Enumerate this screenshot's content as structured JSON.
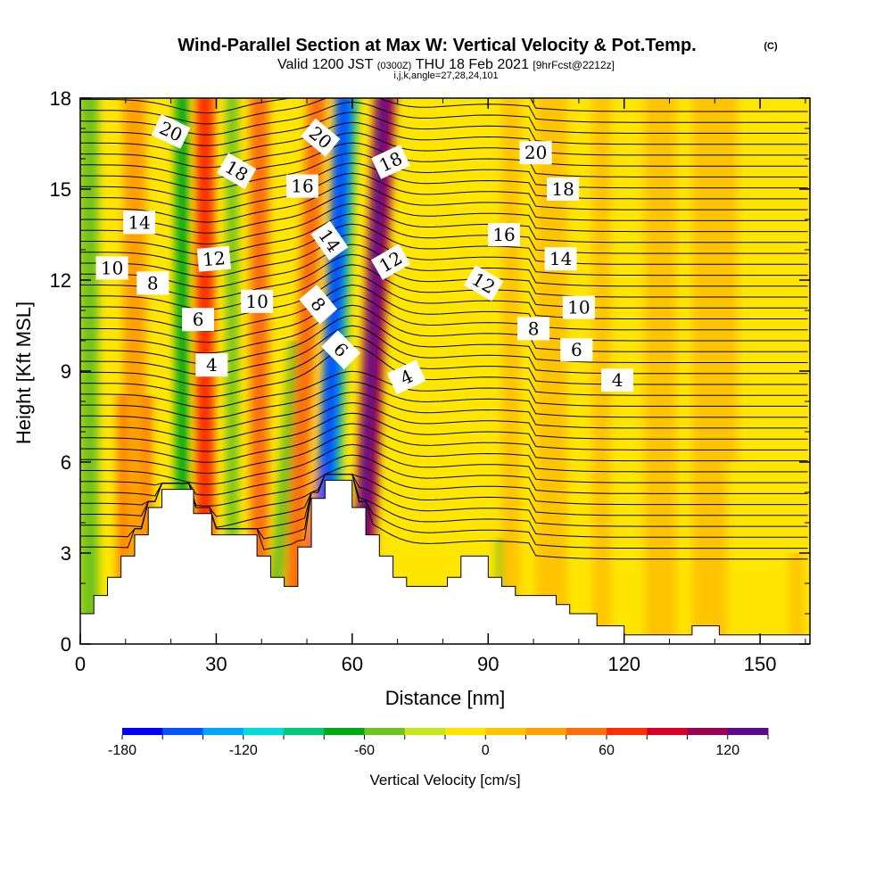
{
  "title": {
    "main": "Wind-Parallel Section at Max W: Vertical Velocity & Pot.Temp.",
    "mark": "(C)",
    "valid_prefix": "Valid 1200 JST",
    "valid_utc": "(0300Z)",
    "valid_date": "THU 18 Feb 2021",
    "forecast": "[9hrFcst@2212z]",
    "indices": "i,j,k,angle=27,28,24,101"
  },
  "chart_data": {
    "type": "heatmap",
    "xlabel": "Distance [nm]",
    "ylabel": "Height [Kft MSL]",
    "xlim": [
      0,
      161
    ],
    "ylim": [
      0,
      18
    ],
    "x_ticks": [
      "0",
      "30",
      "60",
      "90",
      "120",
      "150"
    ],
    "y_ticks": [
      "0",
      "3",
      "6",
      "9",
      "12",
      "15",
      "18"
    ],
    "colorbar": {
      "label": "Vertical Velocity [cm/s]",
      "min": -180,
      "max": 140,
      "step": 20,
      "tick_labels": [
        "-180",
        "-120",
        "-60",
        "0",
        "60",
        "120"
      ],
      "colors": [
        "#0000ff",
        "#0055ff",
        "#00a5ff",
        "#00dcdc",
        "#00c878",
        "#00aa14",
        "#6ec31e",
        "#c8e61e",
        "#ffe600",
        "#ffc400",
        "#ffa000",
        "#ff6e0a",
        "#ff2d00",
        "#dc0028",
        "#9b0055",
        "#5a0a8c"
      ]
    },
    "velocity_bands": [
      {
        "x": 2,
        "w": 4,
        "ytop": 18,
        "v": -50
      },
      {
        "x": 12,
        "w": 7,
        "ytop": 8.2,
        "v": 60
      },
      {
        "x": 12,
        "w": 5,
        "ytop": 18,
        "v": 28
      },
      {
        "x": 22.5,
        "w": 3,
        "ytop": 18,
        "v": -75
      },
      {
        "x": 27.5,
        "w": 4,
        "ytop": 18,
        "v": 70
      },
      {
        "x": 33.5,
        "w": 2.5,
        "ytop": 18,
        "v": -50
      },
      {
        "x": 39.5,
        "w": 4,
        "ytop": 18,
        "v": 45
      },
      {
        "x": 45,
        "w": 3,
        "ytop": 10,
        "v": -60
      },
      {
        "x": 49.5,
        "w": 4,
        "ytop": 18,
        "v": 55
      },
      {
        "x": 52,
        "w": 3,
        "ytop": 7,
        "v": 75
      },
      {
        "x": 56.5,
        "w": 4,
        "ytop": 18,
        "v": -90
      },
      {
        "x": 55.5,
        "w": 4,
        "ytop": 18,
        "v": -150
      },
      {
        "x": 64.5,
        "w": 4.5,
        "ytop": 18,
        "v": 100
      },
      {
        "x": 64,
        "w": 2,
        "ytop": 18,
        "v": 135
      },
      {
        "x": 70,
        "w": 3,
        "ytop": 5,
        "v": -20
      },
      {
        "x": 79,
        "w": 3,
        "ytop": 18,
        "v": -20
      },
      {
        "x": 90,
        "w": 3,
        "ytop": 18,
        "v": -20
      },
      {
        "x": 93,
        "w": 2.5,
        "ytop": 3.5,
        "v": -45
      },
      {
        "x": 95,
        "w": 4,
        "ytop": 18,
        "v": 15
      },
      {
        "x": 104,
        "w": 7,
        "ytop": 18,
        "v": 12
      },
      {
        "x": 115,
        "w": 4,
        "ytop": 18,
        "v": 8
      },
      {
        "x": 128,
        "w": 7,
        "ytop": 18,
        "v": 10
      },
      {
        "x": 140,
        "w": 10,
        "ytop": 18,
        "v": 8
      },
      {
        "x": 144,
        "w": 2.5,
        "ytop": 6,
        "v": -15
      },
      {
        "x": 158,
        "w": 3,
        "ytop": 3,
        "v": 15
      }
    ],
    "terrain": [
      [
        0,
        1.0
      ],
      [
        3,
        1.0
      ],
      [
        3,
        1.6
      ],
      [
        6,
        1.6
      ],
      [
        6,
        2.2
      ],
      [
        9,
        2.2
      ],
      [
        9,
        2.9
      ],
      [
        12,
        2.9
      ],
      [
        12,
        3.6
      ],
      [
        15,
        3.6
      ],
      [
        15,
        4.5
      ],
      [
        18,
        4.5
      ],
      [
        18,
        5.1
      ],
      [
        25,
        5.1
      ],
      [
        25,
        4.3
      ],
      [
        29,
        4.3
      ],
      [
        29,
        3.6
      ],
      [
        39,
        3.6
      ],
      [
        39,
        2.9
      ],
      [
        42,
        2.9
      ],
      [
        42,
        2.2
      ],
      [
        45,
        2.2
      ],
      [
        45,
        1.9
      ],
      [
        48,
        1.9
      ],
      [
        48,
        3.2
      ],
      [
        51,
        3.2
      ],
      [
        51,
        4.8
      ],
      [
        54,
        4.8
      ],
      [
        54,
        5.4
      ],
      [
        60,
        5.4
      ],
      [
        60,
        4.5
      ],
      [
        63,
        4.5
      ],
      [
        63,
        3.6
      ],
      [
        66,
        3.6
      ],
      [
        66,
        2.9
      ],
      [
        69,
        2.9
      ],
      [
        69,
        2.2
      ],
      [
        72,
        2.2
      ],
      [
        72,
        1.9
      ],
      [
        81,
        1.9
      ],
      [
        81,
        2.2
      ],
      [
        84,
        2.2
      ],
      [
        84,
        2.9
      ],
      [
        90,
        2.9
      ],
      [
        90,
        2.2
      ],
      [
        93,
        2.2
      ],
      [
        93,
        1.9
      ],
      [
        96,
        1.9
      ],
      [
        96,
        1.6
      ],
      [
        105,
        1.6
      ],
      [
        105,
        1.3
      ],
      [
        108,
        1.3
      ],
      [
        108,
        1.0
      ],
      [
        114,
        1.0
      ],
      [
        114,
        0.6
      ],
      [
        120,
        0.6
      ],
      [
        120,
        0.3
      ],
      [
        135,
        0.3
      ],
      [
        135,
        0.6
      ],
      [
        141,
        0.6
      ],
      [
        141,
        0.3
      ],
      [
        161,
        0.3
      ],
      [
        161,
        0
      ],
      [
        0,
        0
      ]
    ],
    "theta_contour_labels": [
      {
        "text": "20",
        "x": 20,
        "y": 16.9,
        "angle": 25
      },
      {
        "text": "18",
        "x": 34.5,
        "y": 15.6,
        "angle": 30
      },
      {
        "text": "14",
        "x": 13,
        "y": 13.9,
        "angle": 0
      },
      {
        "text": "12",
        "x": 29.5,
        "y": 12.7,
        "angle": -5
      },
      {
        "text": "10",
        "x": 7,
        "y": 12.4,
        "angle": 0
      },
      {
        "text": "8",
        "x": 16,
        "y": 11.9,
        "angle": 0
      },
      {
        "text": "6",
        "x": 26,
        "y": 10.7,
        "angle": 0
      },
      {
        "text": "4",
        "x": 29,
        "y": 9.2,
        "angle": 0
      },
      {
        "text": "10",
        "x": 39,
        "y": 11.3,
        "angle": 0
      },
      {
        "text": "16",
        "x": 49,
        "y": 15.1,
        "angle": 0
      },
      {
        "text": "20",
        "x": 53,
        "y": 16.7,
        "angle": 40
      },
      {
        "text": "14",
        "x": 55,
        "y": 13.3,
        "angle": 55
      },
      {
        "text": "8",
        "x": 52.5,
        "y": 11.2,
        "angle": 50
      },
      {
        "text": "6",
        "x": 57.5,
        "y": 9.7,
        "angle": 45
      },
      {
        "text": "18",
        "x": 68.5,
        "y": 15.9,
        "angle": -25
      },
      {
        "text": "12",
        "x": 68.5,
        "y": 12.6,
        "angle": -30
      },
      {
        "text": "4",
        "x": 72,
        "y": 8.8,
        "angle": -25
      },
      {
        "text": "20",
        "x": 100.5,
        "y": 16.2,
        "angle": 0
      },
      {
        "text": "18",
        "x": 106.5,
        "y": 15.0,
        "angle": 0
      },
      {
        "text": "16",
        "x": 93.5,
        "y": 13.5,
        "angle": 0
      },
      {
        "text": "12",
        "x": 89,
        "y": 11.9,
        "angle": 30
      },
      {
        "text": "14",
        "x": 106,
        "y": 12.7,
        "angle": 0
      },
      {
        "text": "10",
        "x": 110,
        "y": 11.1,
        "angle": 0
      },
      {
        "text": "8",
        "x": 100,
        "y": 10.4,
        "angle": 0
      },
      {
        "text": "6",
        "x": 109.5,
        "y": 9.7,
        "angle": 0
      },
      {
        "text": "4",
        "x": 118.5,
        "y": 8.7,
        "angle": 0
      }
    ]
  }
}
